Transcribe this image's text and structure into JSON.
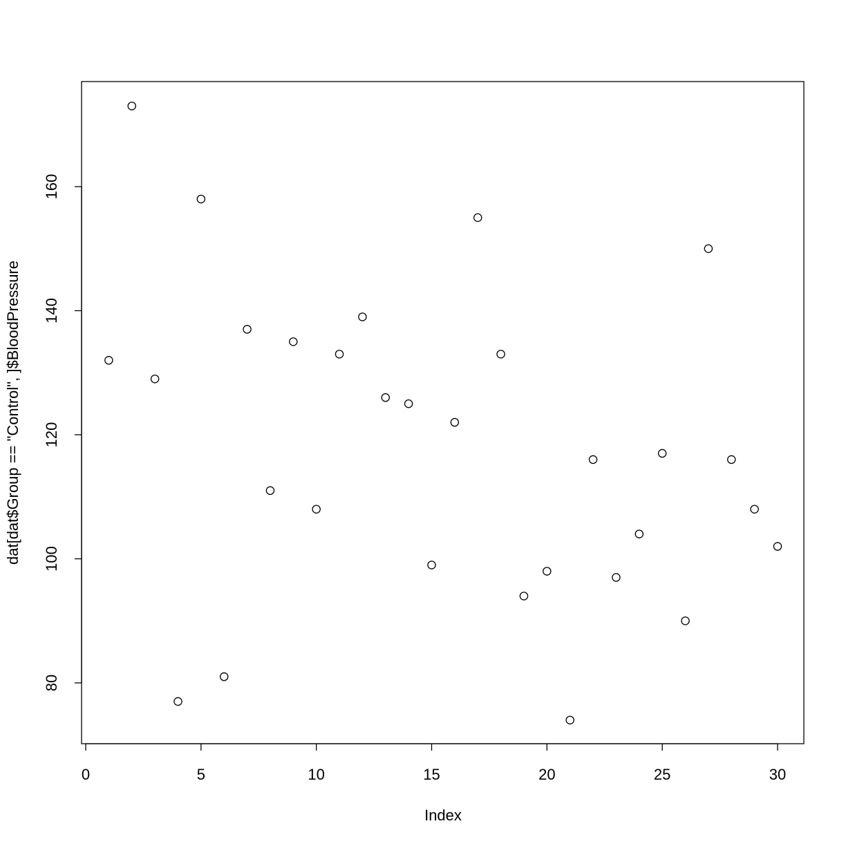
{
  "chart_data": {
    "type": "scatter",
    "xlabel": "Index",
    "ylabel": "dat[dat$Group == \"Control\", ]$BloodPressure",
    "xlim": [
      0,
      31
    ],
    "ylim": [
      70,
      175
    ],
    "x_ticks": [
      0,
      5,
      10,
      15,
      20,
      25,
      30
    ],
    "y_ticks": [
      80,
      100,
      120,
      140,
      160
    ],
    "x_tick_labels": [
      "0",
      "5",
      "10",
      "15",
      "20",
      "25",
      "30"
    ],
    "y_tick_labels": [
      "80",
      "100",
      "120",
      "140",
      "160"
    ],
    "grid": false,
    "marker": "open-circle",
    "x": [
      1,
      2,
      3,
      4,
      5,
      6,
      7,
      8,
      9,
      10,
      11,
      12,
      13,
      14,
      15,
      16,
      17,
      18,
      19,
      20,
      21,
      22,
      23,
      24,
      25,
      26,
      27,
      28,
      29,
      30
    ],
    "y": [
      132,
      173,
      129,
      77,
      158,
      81,
      137,
      111,
      135,
      108,
      133,
      139,
      126,
      125,
      99,
      122,
      155,
      133,
      94,
      98,
      74,
      116,
      97,
      104,
      117,
      90,
      150,
      116,
      108,
      102
    ]
  }
}
